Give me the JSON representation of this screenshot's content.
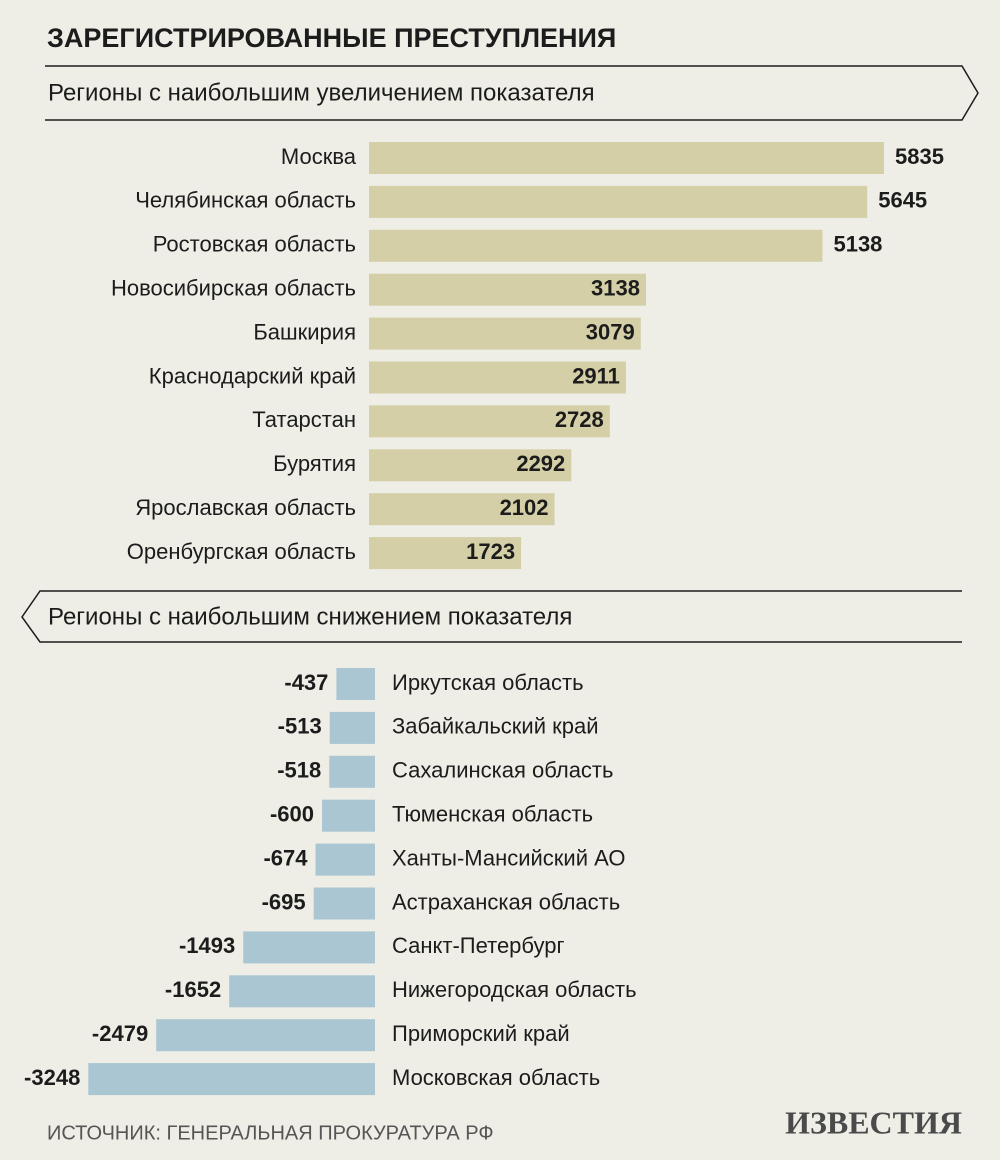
{
  "title": "ЗАРЕГИСТРИРОВАННЫЕ ПРЕСТУПЛЕНИЯ",
  "source": "ИСТОЧНИК: ГЕНЕРАЛЬНАЯ ПРОКУРАТУРА РФ",
  "logo": "ИЗВЕСТИЯ",
  "chart_data": [
    {
      "type": "bar",
      "orientation": "horizontal",
      "title": "Регионы с наибольшим увеличением показателя",
      "categories": [
        "Москва",
        "Челябинская область",
        "Ростовская область",
        "Новосибирская область",
        "Башкирия",
        "Краснодарский край",
        "Татарстан",
        "Бурятия",
        "Ярославская область",
        "Оренбургская область"
      ],
      "values": [
        5835,
        5645,
        5138,
        3138,
        3079,
        2911,
        2728,
        2292,
        2102,
        1723
      ],
      "color": "#d4cfa6"
    },
    {
      "type": "bar",
      "orientation": "horizontal",
      "title": "Регионы с наибольшим снижением показателя",
      "categories": [
        "Иркутская область",
        "Забайкальский край",
        "Сахалинская область",
        "Тюменская область",
        "Ханты-Мансийский АО",
        "Астраханская область",
        "Санкт-Петербург",
        "Нижегородская область",
        "Приморский край",
        "Московская область"
      ],
      "values": [
        -437,
        -513,
        -518,
        -600,
        -674,
        -695,
        -1493,
        -1652,
        -2479,
        -3248
      ],
      "color": "#aac6d3"
    }
  ]
}
